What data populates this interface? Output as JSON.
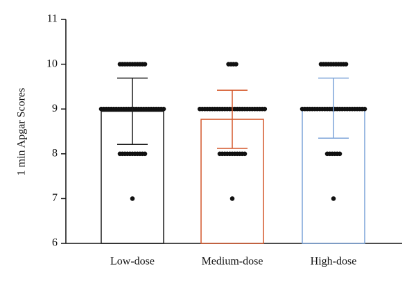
{
  "chart_data": {
    "type": "bar",
    "y_label": "1 min Apgar Scores",
    "categories": [
      "Low-dose",
      "Medium-dose",
      "High-dose"
    ],
    "values": [
      8.95,
      8.77,
      9.02
    ],
    "errors": [
      0.74,
      0.65,
      0.67
    ],
    "colors": [
      "#1a1a1a",
      "#d4572a",
      "#7ba3d8"
    ],
    "points": [
      [
        10,
        10,
        10,
        10,
        10,
        10,
        10,
        10,
        10,
        10,
        10,
        9,
        9,
        9,
        9,
        9,
        9,
        9,
        9,
        9,
        9,
        9,
        9,
        9,
        9,
        9,
        9,
        9,
        9,
        9,
        9,
        9,
        9,
        9,
        9,
        9,
        9,
        8,
        8,
        8,
        8,
        8,
        8,
        8,
        8,
        8,
        8,
        8,
        7
      ],
      [
        10,
        10,
        10,
        10,
        9,
        9,
        9,
        9,
        9,
        9,
        9,
        9,
        9,
        9,
        9,
        9,
        9,
        9,
        9,
        9,
        9,
        9,
        9,
        9,
        9,
        9,
        9,
        9,
        9,
        9,
        9,
        8,
        8,
        8,
        8,
        8,
        8,
        8,
        8,
        8,
        8,
        8,
        7
      ],
      [
        10,
        10,
        10,
        10,
        10,
        10,
        10,
        10,
        10,
        10,
        10,
        9,
        9,
        9,
        9,
        9,
        9,
        9,
        9,
        9,
        9,
        9,
        9,
        9,
        9,
        9,
        9,
        9,
        9,
        9,
        9,
        9,
        9,
        9,
        9,
        9,
        9,
        8,
        8,
        8,
        8,
        8,
        8,
        7
      ]
    ],
    "ylim": [
      6,
      11
    ],
    "yticks": [
      6,
      7,
      8,
      9,
      10,
      11
    ]
  }
}
